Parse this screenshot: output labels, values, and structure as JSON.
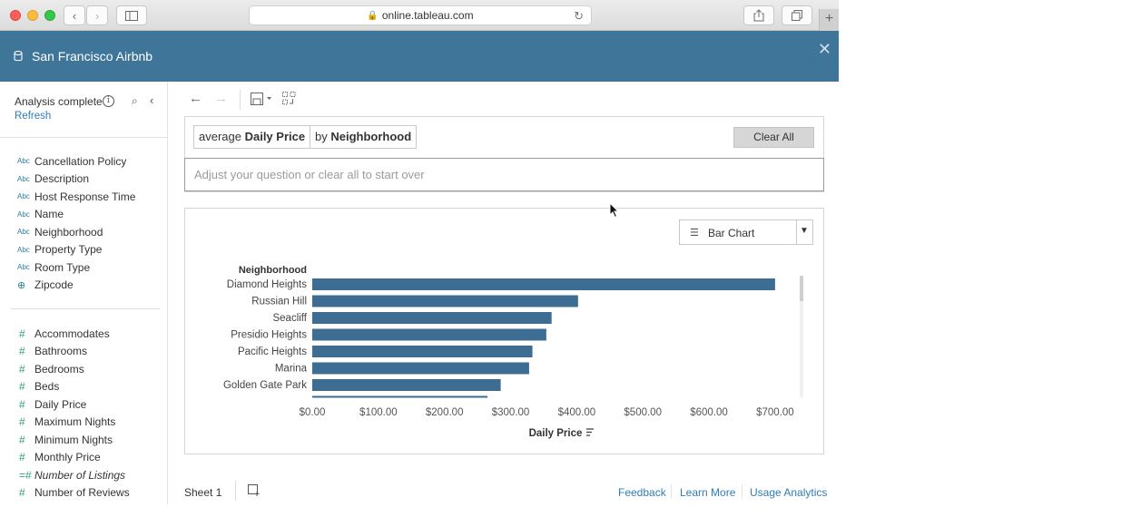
{
  "browser": {
    "url": "online.tableau.com"
  },
  "header": {
    "title": "San Francisco Airbnb"
  },
  "sidebar": {
    "status": "Analysis complete",
    "refresh": "Refresh",
    "dimensions": [
      {
        "type": "Abc",
        "label": "Cancellation Policy"
      },
      {
        "type": "Abc",
        "label": "Description"
      },
      {
        "type": "Abc",
        "label": "Host Response Time"
      },
      {
        "type": "Abc",
        "label": "Name"
      },
      {
        "type": "Abc",
        "label": "Neighborhood"
      },
      {
        "type": "Abc",
        "label": "Property Type"
      },
      {
        "type": "Abc",
        "label": "Room Type"
      },
      {
        "type": "geo",
        "label": "Zipcode"
      }
    ],
    "measures": [
      {
        "type": "#",
        "label": "Accommodates"
      },
      {
        "type": "#",
        "label": "Bathrooms"
      },
      {
        "type": "#",
        "label": "Bedrooms"
      },
      {
        "type": "#",
        "label": "Beds"
      },
      {
        "type": "#",
        "label": "Daily Price"
      },
      {
        "type": "#",
        "label": "Maximum Nights"
      },
      {
        "type": "#",
        "label": "Minimum Nights"
      },
      {
        "type": "#",
        "label": "Monthly Price"
      },
      {
        "type": "=#",
        "label": "Number of Listings",
        "italic": true
      },
      {
        "type": "#",
        "label": "Number of Reviews"
      }
    ]
  },
  "ask": {
    "pill1_prefix": "average ",
    "pill1_bold": "Daily Price",
    "pill2_prefix": "by ",
    "pill2_bold": "Neighborhood",
    "clear_all": "Clear All",
    "placeholder": "Adjust your question or clear all to start over"
  },
  "viz": {
    "type_label": "Bar Chart"
  },
  "chart_data": {
    "type": "bar",
    "orientation": "horizontal",
    "category_header": "Neighborhood",
    "categories": [
      "Diamond Heights",
      "Russian Hill",
      "Seacliff",
      "Presidio Heights",
      "Pacific Heights",
      "Marina",
      "Golden Gate Park"
    ],
    "values": [
      700,
      402,
      362,
      354,
      333,
      328,
      285
    ],
    "partial_next_value": 265,
    "xlabel": "Daily Price",
    "xticks": [
      "$0.00",
      "$100.00",
      "$200.00",
      "$300.00",
      "$400.00",
      "$500.00",
      "$600.00",
      "$700.00"
    ],
    "xlim": [
      0,
      718
    ],
    "bar_color": "#3e6d94",
    "grid": false
  },
  "footer": {
    "sheet": "Sheet 1",
    "feedback": "Feedback",
    "learn_more": "Learn More",
    "usage_analytics": "Usage Analytics"
  }
}
